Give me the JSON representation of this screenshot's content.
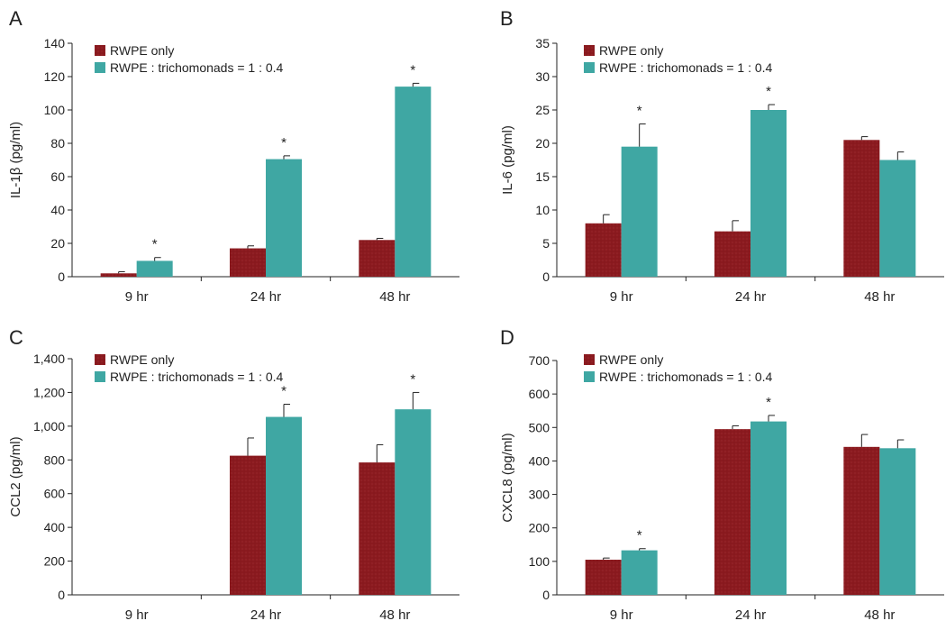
{
  "figure": {
    "colors": {
      "rwpe_only": "#8b1a1f",
      "rwpe_tricho": "#3fa7a3",
      "axis": "#222222"
    }
  },
  "chart_data": [
    {
      "type": "bar",
      "panel_label": "A",
      "title": "",
      "xlabel": "",
      "ylabel": "IL-1β (pg/ml)",
      "ylim": [
        0,
        140
      ],
      "yticks": [
        0,
        20,
        40,
        60,
        80,
        100,
        120,
        140
      ],
      "ytick_labels": [
        "0",
        "20",
        "40",
        "60",
        "80",
        "100",
        "120",
        "140"
      ],
      "categories": [
        "9 hr",
        "24 hr",
        "48 hr"
      ],
      "series": [
        {
          "name": "RWPE only",
          "values": [
            2,
            17,
            22
          ],
          "errors": [
            1,
            1.5,
            1
          ]
        },
        {
          "name": "RWPE : trichomonads = 1 : 0.4",
          "values": [
            9.5,
            70.5,
            114
          ],
          "errors": [
            2,
            2,
            2
          ]
        }
      ],
      "annotations": [
        {
          "category": "9 hr",
          "text": "*"
        },
        {
          "category": "24 hr",
          "text": "*"
        },
        {
          "category": "48 hr",
          "text": "*"
        }
      ],
      "legend": "top-left"
    },
    {
      "type": "bar",
      "panel_label": "B",
      "title": "",
      "xlabel": "",
      "ylabel": "IL-6 (pg/ml)",
      "ylim": [
        0,
        35
      ],
      "yticks": [
        0,
        5,
        10,
        15,
        20,
        25,
        30,
        35
      ],
      "ytick_labels": [
        "0",
        "5",
        "10",
        "15",
        "20",
        "25",
        "30",
        "35"
      ],
      "categories": [
        "9 hr",
        "24 hr",
        "48 hr"
      ],
      "series": [
        {
          "name": "RWPE only",
          "values": [
            8,
            6.8,
            20.5
          ],
          "errors": [
            1.3,
            1.6,
            0.5
          ]
        },
        {
          "name": "RWPE : trichomonads = 1 : 0.4",
          "values": [
            19.5,
            25,
            17.5
          ],
          "errors": [
            3.4,
            0.8,
            1.2
          ]
        }
      ],
      "annotations": [
        {
          "category": "9 hr",
          "text": "*"
        },
        {
          "category": "24 hr",
          "text": "*"
        }
      ],
      "legend": "top-left"
    },
    {
      "type": "bar",
      "panel_label": "C",
      "title": "",
      "xlabel": "",
      "ylabel": "CCL2 (pg/ml)",
      "ylim": [
        0,
        1400
      ],
      "yticks": [
        0,
        200,
        400,
        600,
        800,
        1000,
        1200,
        1400
      ],
      "ytick_labels": [
        "0",
        "200",
        "400",
        "600",
        "800",
        "1,000",
        "1,200",
        "1,400"
      ],
      "categories": [
        "9 hr",
        "24 hr",
        "48 hr"
      ],
      "series": [
        {
          "name": "RWPE only",
          "values": [
            0,
            825,
            785
          ],
          "errors": [
            0,
            105,
            105
          ]
        },
        {
          "name": "RWPE : trichomonads = 1 : 0.4",
          "values": [
            0,
            1055,
            1100
          ],
          "errors": [
            0,
            75,
            100
          ]
        }
      ],
      "annotations": [
        {
          "category": "24 hr",
          "text": "*"
        },
        {
          "category": "48 hr",
          "text": "*"
        }
      ],
      "legend": "top-left"
    },
    {
      "type": "bar",
      "panel_label": "D",
      "title": "",
      "xlabel": "",
      "ylabel": "CXCL8 (pg/ml)",
      "ylim": [
        0,
        700
      ],
      "yticks": [
        0,
        100,
        200,
        300,
        400,
        500,
        600,
        700
      ],
      "ytick_labels": [
        "0",
        "100",
        "200",
        "300",
        "400",
        "500",
        "600",
        "700"
      ],
      "categories": [
        "9 hr",
        "24 hr",
        "48 hr"
      ],
      "series": [
        {
          "name": "RWPE only",
          "values": [
            105,
            495,
            442
          ],
          "errors": [
            5,
            10,
            37
          ]
        },
        {
          "name": "RWPE : trichomonads = 1 : 0.4",
          "values": [
            133,
            518,
            438
          ],
          "errors": [
            5,
            18,
            25
          ]
        }
      ],
      "annotations": [
        {
          "category": "9 hr",
          "text": "*"
        },
        {
          "category": "24 hr",
          "text": "*"
        }
      ],
      "legend": "top-left"
    }
  ]
}
